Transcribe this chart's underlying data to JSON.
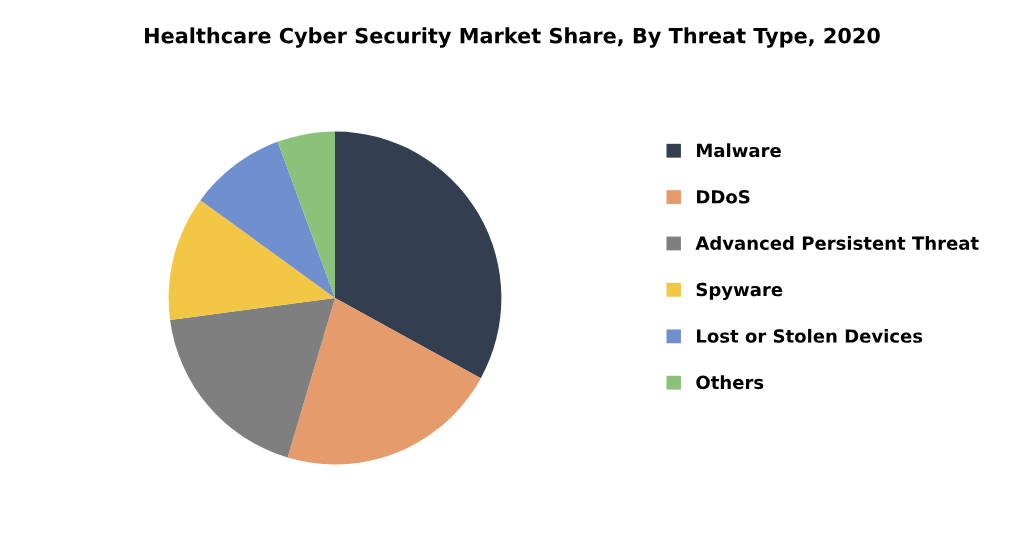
{
  "chart_data": {
    "type": "pie",
    "title": "Healthcare Cyber Security Market Share, By Threat Type, 2020",
    "categories": [
      "Malware",
      "DDoS",
      "Advanced Persistent Threat",
      "Spyware",
      "Lost or Stolen Devices",
      "Others"
    ],
    "values": [
      33,
      21.6,
      18.3,
      12.1,
      9.4,
      5.6
    ],
    "colors": [
      "#333f50",
      "#e59b6b",
      "#7f7f7f",
      "#f2c744",
      "#6f8fcf",
      "#8cc17a"
    ],
    "legend": "right"
  }
}
